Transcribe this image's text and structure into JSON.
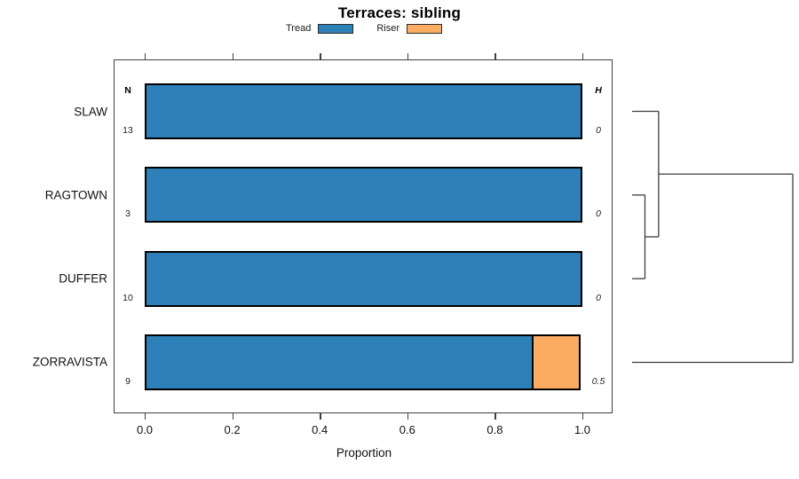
{
  "title": "Terraces: sibling",
  "legend": {
    "items": [
      {
        "label": "Tread",
        "color": "#2d80b8"
      },
      {
        "label": "Riser",
        "color": "#fcac60"
      }
    ]
  },
  "columns": {
    "n_header": "N",
    "h_header": "H"
  },
  "axis": {
    "label": "Proportion",
    "tick_labels": [
      "0.0",
      "0.2",
      "0.4",
      "0.6",
      "0.8",
      "1.0"
    ],
    "tick_values": [
      0,
      0.2,
      0.4,
      0.6,
      0.8,
      1.0
    ],
    "min": 0,
    "max": 1
  },
  "chart_data": {
    "type": "bar",
    "orientation": "horizontal",
    "stacked": true,
    "title": "Terraces: sibling",
    "xlabel": "Proportion",
    "xlim": [
      0,
      1
    ],
    "grid": false,
    "legend_position": "top-center",
    "categories": [
      "SLAW",
      "RAGTOWN",
      "DUFFER",
      "ZORRAVISTA"
    ],
    "series": [
      {
        "name": "Tread",
        "color": "#2d80b8",
        "values": [
          1.0,
          1.0,
          1.0,
          0.889
        ]
      },
      {
        "name": "Riser",
        "color": "#fcac60",
        "values": [
          0.0,
          0.0,
          0.0,
          0.111
        ]
      }
    ],
    "n_values": [
      "13",
      "3",
      "10",
      "9"
    ],
    "h_values": [
      "0",
      "0",
      "0",
      "0.5"
    ],
    "dendrogram": {
      "note": "right-side cluster tree, heights normalized 0-1",
      "height": 1.0,
      "children": [
        {
          "height": 0.165,
          "children": [
            {
              "leaf": "SLAW"
            },
            {
              "height": 0.08,
              "children": [
                {
                  "leaf": "RAGTOWN"
                },
                {
                  "leaf": "DUFFER"
                }
              ]
            }
          ]
        },
        {
          "leaf": "ZORRAVISTA"
        }
      ]
    }
  }
}
